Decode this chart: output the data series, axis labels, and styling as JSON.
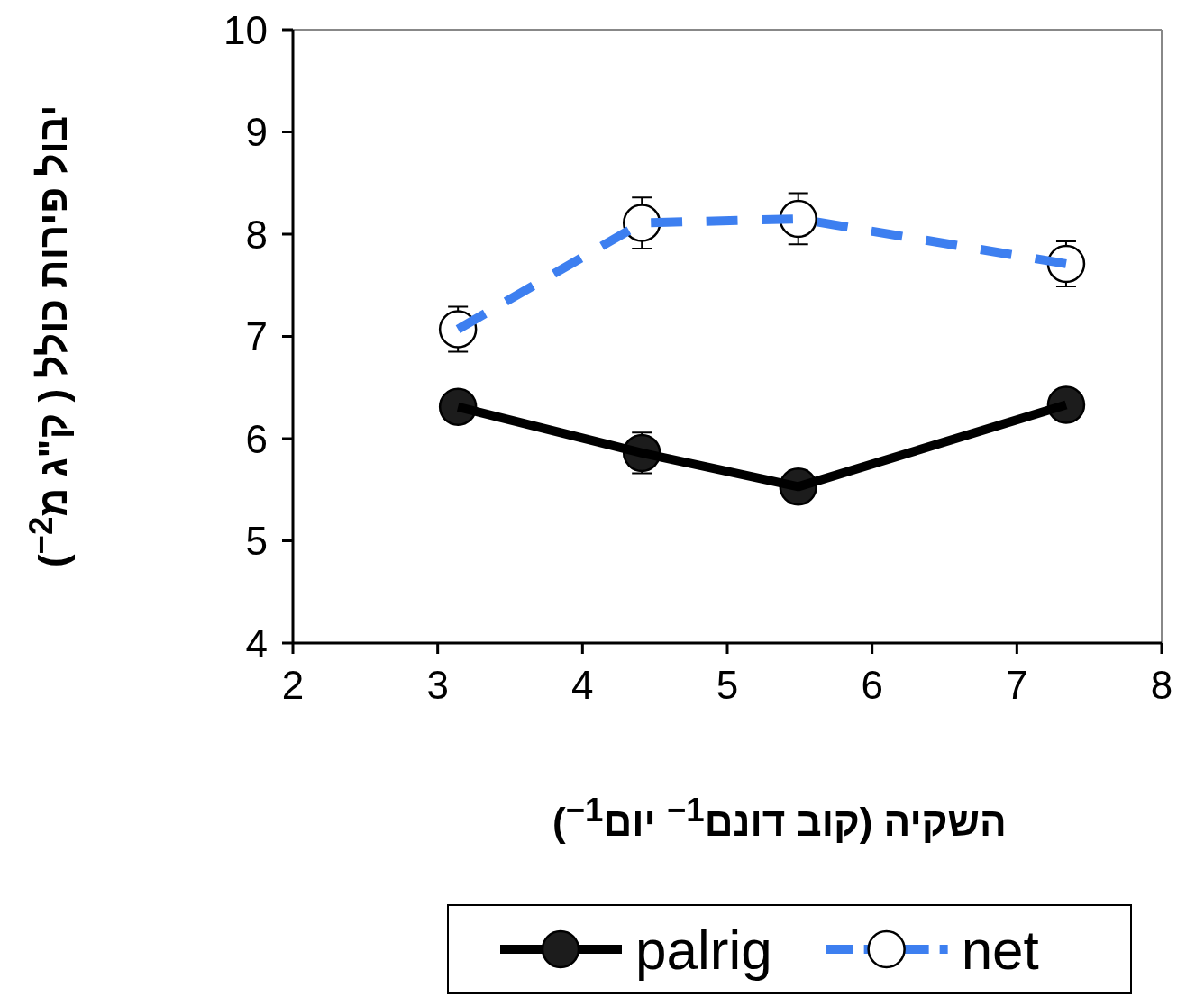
{
  "chart_data": {
    "type": "line",
    "xlabel": "השקיה  (קוב דונם$^{−1}$ יום$^{−1}$)",
    "ylabel": "יבול פירות כולל ( ק\"ג מ$^{−2}$)",
    "xlim": [
      2,
      8
    ],
    "xticks": [
      2,
      3,
      4,
      5,
      6,
      7,
      8
    ],
    "ylim": [
      4,
      10
    ],
    "yticks": [
      4,
      5,
      6,
      7,
      8,
      9,
      10
    ],
    "legend": "bottom",
    "series": [
      {
        "name": "palrig",
        "color": "#000000",
        "marker": "circle",
        "colors": [
          "#1c1c1c",
          "#1c1c1c",
          "#1c1c1c",
          "#1c1c1c"
        ],
        "line_style": "solid",
        "x": [
          3.14,
          4.41,
          5.49,
          7.34
        ],
        "values": [
          6.31,
          5.86,
          5.53,
          6.33
        ],
        "errors": [
          0.12,
          0.2,
          0.16,
          0.12
        ]
      },
      {
        "name": "net",
        "color": "#3d7ff0",
        "marker": "circle",
        "colors": [
          "#ffffff",
          "#ffffff",
          "#ffffff",
          "#ffffff"
        ],
        "line_style": "dashed",
        "x": [
          3.14,
          4.41,
          5.49,
          7.34
        ],
        "values": [
          7.07,
          8.11,
          8.15,
          7.71
        ],
        "errors": [
          0.22,
          0.25,
          0.25,
          0.22
        ]
      }
    ]
  }
}
